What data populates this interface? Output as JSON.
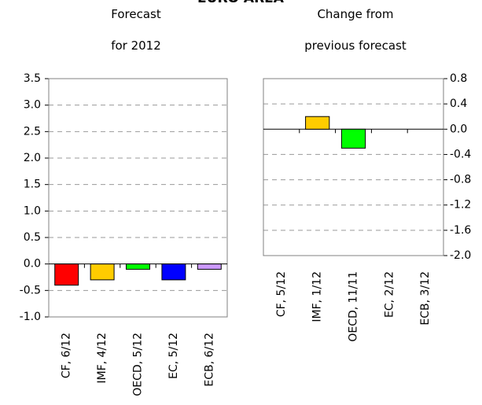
{
  "title": "EURO AREA",
  "chart_data": [
    {
      "type": "bar",
      "title_lines": [
        "Forecast",
        "for 2012"
      ],
      "categories": [
        "CF, 6/12",
        "IMF, 4/12",
        "OECD, 5/12",
        "EC, 5/12",
        "ECB, 6/12"
      ],
      "values": [
        -0.4,
        -0.3,
        -0.1,
        -0.3,
        -0.1
      ],
      "colors": [
        "#ff0000",
        "#ffcc00",
        "#00ff00",
        "#0000ff",
        "#cc99ff"
      ],
      "ylim": [
        -1.0,
        3.5
      ],
      "yticks": [
        "3.5",
        "3.0",
        "2.5",
        "2.0",
        "1.5",
        "1.0",
        "0.5",
        "0.0",
        "-0.5",
        "-1.0"
      ],
      "grid": true,
      "y_axis_side": "left"
    },
    {
      "type": "bar",
      "title_lines": [
        "Change from",
        "previous forecast"
      ],
      "categories": [
        "CF, 5/12",
        "IMF, 1/12",
        "OECD, 11/11",
        "EC, 2/12",
        "ECB, 3/12"
      ],
      "values": [
        0,
        0.2,
        -0.3,
        0,
        0
      ],
      "colors": [
        "#ff0000",
        "#ffcc00",
        "#00ff00",
        "#0000ff",
        "#cc99ff"
      ],
      "ylim": [
        -2.0,
        0.8
      ],
      "yticks": [
        "0.8",
        "0.4",
        "0.0",
        "-0.4",
        "-0.8",
        "-1.2",
        "-1.6",
        "-2.0"
      ],
      "grid": true,
      "y_axis_side": "right"
    }
  ]
}
